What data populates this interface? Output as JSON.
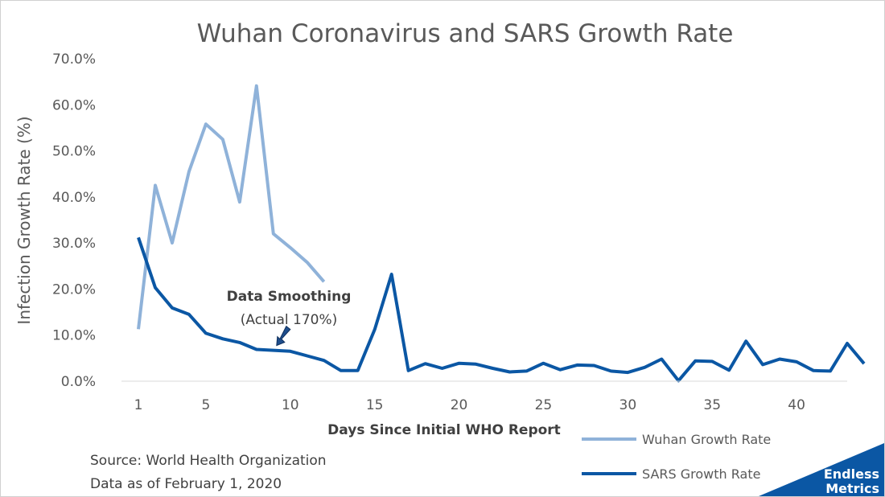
{
  "chart_data": {
    "type": "line",
    "title": "Wuhan Coronavirus and SARS Growth Rate",
    "xlabel": "Days Since Initial WHO Report",
    "ylabel": "Infection Growth Rate (%)",
    "xlim": [
      1,
      44
    ],
    "ylim": [
      0,
      70
    ],
    "x_ticks": [
      1,
      5,
      10,
      15,
      20,
      25,
      30,
      35,
      40
    ],
    "y_ticks": [
      0,
      10,
      20,
      30,
      40,
      50,
      60,
      70
    ],
    "y_tick_labels": [
      "0.0%",
      "10.0%",
      "20.0%",
      "30.0%",
      "40.0%",
      "50.0%",
      "60.0%",
      "70.0%"
    ],
    "grid": false,
    "legend_position": "bottom-right",
    "series": [
      {
        "name": "Wuhan Growth Rate",
        "color": "#8fb2d9",
        "x": [
          1,
          2,
          3,
          4,
          5,
          6,
          7,
          8,
          9,
          10,
          11,
          12
        ],
        "y": [
          11.3,
          42.5,
          30.0,
          45.5,
          55.8,
          52.5,
          38.9,
          64.1,
          32.0,
          29.0,
          25.8,
          21.6
        ]
      },
      {
        "name": "SARS Growth Rate",
        "color": "#0b57a4",
        "x": [
          1,
          2,
          3,
          4,
          5,
          6,
          7,
          8,
          9,
          10,
          11,
          12,
          13,
          14,
          15,
          16,
          17,
          18,
          19,
          20,
          21,
          22,
          23,
          24,
          25,
          26,
          27,
          28,
          29,
          30,
          31,
          32,
          33,
          34,
          35,
          36,
          37,
          38,
          39,
          40,
          41,
          42,
          43,
          44
        ],
        "y": [
          31.2,
          20.3,
          15.9,
          14.5,
          10.4,
          9.2,
          8.4,
          6.9,
          6.7,
          6.5,
          5.5,
          4.5,
          2.3,
          2.3,
          11.2,
          23.2,
          2.3,
          3.8,
          2.8,
          3.9,
          3.7,
          2.8,
          2.0,
          2.2,
          3.9,
          2.5,
          3.5,
          3.4,
          2.2,
          1.9,
          3.0,
          4.8,
          0.1,
          4.4,
          4.3,
          2.4,
          8.7,
          3.6,
          4.8,
          4.2,
          2.3,
          2.2,
          8.2,
          3.8
        ]
      }
    ],
    "annotation": {
      "line1": "Data Smoothing",
      "line2": "(Actual 170%)",
      "target_x": 9,
      "target_y": 6.7
    }
  },
  "source": {
    "line1": "Source: World Health Organization",
    "line2": "Data as of February 1, 2020"
  },
  "logo": {
    "line1": "Endless",
    "line2": "Metrics",
    "color": "#0b57a4"
  }
}
